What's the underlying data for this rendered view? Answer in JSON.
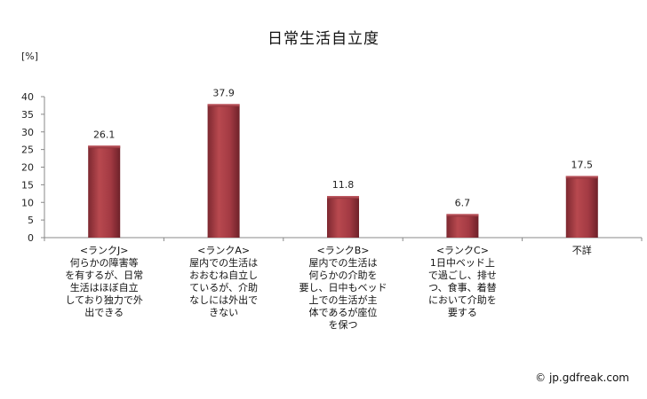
{
  "chart_data": {
    "type": "bar",
    "title": "日常生活自立度",
    "ylabel": "[%]",
    "ylim": [
      0,
      40
    ],
    "yticks": [
      0,
      5,
      10,
      15,
      20,
      25,
      30,
      35,
      40
    ],
    "grid": false,
    "categories": [
      "<ランクJ>\n何らかの障害等\nを有するが、日常\n生活はほぼ自立\nしており独力で外\n出できる",
      "<ランクA>\n屋内での生活は\nおおむね自立し\nているが、介助\nなしには外出で\nきない",
      "<ランクB>\n屋内での生活は\n何らかの介助を\n要し、日中もベッド\n上での生活が主\n体であるが座位\nを保つ",
      "<ランクC>\n1日中ベッド上\nで過ごし、排せ\nつ、食事、着替\nにおいて介助を\n要する",
      "不詳"
    ],
    "values": [
      26.1,
      37.9,
      11.8,
      6.7,
      17.5
    ],
    "value_labels": [
      "26.1",
      "37.9",
      "11.8",
      "6.7",
      "17.5"
    ],
    "bar_color": "#a33a43"
  },
  "credit": "© jp.gdfreak.com"
}
